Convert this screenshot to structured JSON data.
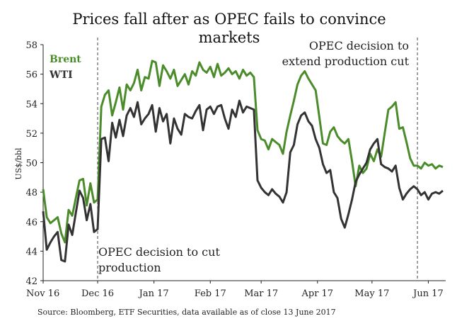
{
  "chart_data": {
    "type": "line",
    "title_lines": [
      "Prices fall after as OPEC fails to convince",
      "markets"
    ],
    "ylabel": "US$/bbl",
    "xlabel": "",
    "ylim": [
      42,
      58
    ],
    "yticks": [
      42,
      44,
      46,
      48,
      50,
      52,
      54,
      56,
      58
    ],
    "xlim": [
      0,
      220
    ],
    "xticks": [
      {
        "label": "Nov 16",
        "x": 0
      },
      {
        "label": "Dec 16",
        "x": 30
      },
      {
        "label": "Jan 17",
        "x": 61
      },
      {
        "label": "Feb 17",
        "x": 92
      },
      {
        "label": "Mar 17",
        "x": 120
      },
      {
        "label": "Apr 17",
        "x": 151
      },
      {
        "label": "May 17",
        "x": 181
      },
      {
        "label": "Jun 17",
        "x": 212
      }
    ],
    "series": [
      {
        "name": "Brent",
        "color": "#4a8c2a",
        "x": [
          0,
          2,
          4,
          6,
          8,
          10,
          12,
          14,
          16,
          18,
          20,
          22,
          24,
          26,
          28,
          30,
          32,
          34,
          36,
          38,
          40,
          42,
          44,
          46,
          48,
          50,
          52,
          54,
          56,
          58,
          60,
          62,
          64,
          66,
          68,
          70,
          72,
          74,
          76,
          78,
          80,
          82,
          84,
          86,
          88,
          90,
          92,
          94,
          96,
          98,
          100,
          102,
          104,
          106,
          108,
          110,
          112,
          114,
          116,
          118,
          120,
          122,
          124,
          126,
          128,
          130,
          132,
          134,
          136,
          138,
          140,
          142,
          144,
          146,
          148,
          150,
          152,
          154,
          156,
          158,
          160,
          162,
          164,
          166,
          168,
          170,
          172,
          174,
          176,
          178,
          180,
          182,
          184,
          186,
          188,
          190,
          192,
          194,
          196,
          198,
          200,
          202,
          204,
          206,
          208,
          210,
          212,
          214,
          216,
          218,
          220
        ],
        "values": [
          48.2,
          46.3,
          45.9,
          46.1,
          46.3,
          45.2,
          44.6,
          46.8,
          46.4,
          47.6,
          48.8,
          48.9,
          47.1,
          48.6,
          47.3,
          47.5,
          53.8,
          54.6,
          54.9,
          53.2,
          54.1,
          55.1,
          53.6,
          55.3,
          54.9,
          55.4,
          56.3,
          54.9,
          55.8,
          55.7,
          56.9,
          56.8,
          55.2,
          56.6,
          56.2,
          55.7,
          56.3,
          55.2,
          55.6,
          56.0,
          55.3,
          56.2,
          55.9,
          56.8,
          56.3,
          56.1,
          56.5,
          55.8,
          56.7,
          55.9,
          56.1,
          56.4,
          56.0,
          56.2,
          55.7,
          56.3,
          55.9,
          56.1,
          55.8,
          52.2,
          51.6,
          51.5,
          50.9,
          51.6,
          51.4,
          51.2,
          50.6,
          52.1,
          53.2,
          54.2,
          55.3,
          55.9,
          56.2,
          55.7,
          55.3,
          54.9,
          53.1,
          51.3,
          51.2,
          52.1,
          52.4,
          51.8,
          51.5,
          51.3,
          51.6,
          50.1,
          48.4,
          49.8,
          49.3,
          49.6,
          50.6,
          50.1,
          50.9,
          50.4,
          52.0,
          53.6,
          53.8,
          54.1,
          52.3,
          52.4,
          51.4,
          50.3,
          49.8,
          49.8,
          49.6,
          50.0,
          49.8,
          49.9,
          49.6,
          49.8,
          49.7
        ]
      },
      {
        "name": "WTI",
        "color": "#333333",
        "x": [
          0,
          2,
          4,
          6,
          8,
          10,
          12,
          14,
          16,
          18,
          20,
          22,
          24,
          26,
          28,
          30,
          32,
          34,
          36,
          38,
          40,
          42,
          44,
          46,
          48,
          50,
          52,
          54,
          56,
          58,
          60,
          62,
          64,
          66,
          68,
          70,
          72,
          74,
          76,
          78,
          80,
          82,
          84,
          86,
          88,
          90,
          92,
          94,
          96,
          98,
          100,
          102,
          104,
          106,
          108,
          110,
          112,
          114,
          116,
          118,
          120,
          122,
          124,
          126,
          128,
          130,
          132,
          134,
          136,
          138,
          140,
          142,
          144,
          146,
          148,
          150,
          152,
          154,
          156,
          158,
          160,
          162,
          164,
          166,
          168,
          170,
          172,
          174,
          176,
          178,
          180,
          182,
          184,
          186,
          188,
          190,
          192,
          194,
          196,
          198,
          200,
          202,
          204,
          206,
          208,
          210,
          212,
          214,
          216,
          218,
          220
        ],
        "values": [
          46.7,
          44.1,
          44.6,
          45.0,
          45.3,
          43.4,
          43.3,
          45.8,
          45.1,
          46.6,
          48.1,
          47.6,
          46.1,
          47.2,
          45.3,
          45.5,
          51.6,
          51.7,
          50.1,
          52.7,
          51.7,
          52.9,
          51.8,
          53.2,
          53.7,
          53.1,
          54.1,
          52.6,
          53.0,
          53.3,
          53.9,
          52.1,
          53.7,
          52.8,
          53.3,
          51.3,
          53.0,
          52.3,
          51.9,
          53.3,
          53.1,
          53.0,
          53.5,
          53.9,
          52.2,
          53.6,
          53.8,
          53.3,
          53.8,
          53.9,
          53.0,
          52.3,
          53.6,
          53.1,
          54.2,
          53.4,
          53.8,
          53.7,
          53.6,
          48.8,
          48.3,
          48.0,
          47.8,
          48.2,
          47.9,
          47.7,
          47.3,
          48.0,
          50.7,
          51.2,
          52.6,
          53.2,
          53.4,
          52.8,
          52.5,
          51.6,
          51.0,
          49.9,
          49.3,
          49.5,
          48.0,
          47.6,
          46.2,
          45.6,
          46.5,
          47.5,
          48.7,
          49.2,
          49.6,
          50.0,
          50.9,
          51.3,
          51.6,
          49.9,
          49.7,
          49.6,
          49.4,
          49.8,
          48.3,
          47.5,
          47.9,
          48.2,
          48.4,
          48.2,
          47.8,
          48.0,
          47.5,
          47.9,
          48.0,
          47.9,
          48.1
        ]
      }
    ],
    "vlines": [
      {
        "x": 30,
        "label": "OPEC decision to cut production"
      },
      {
        "x": 206,
        "label": "OPEC decision to extend production cut"
      }
    ],
    "annotations": [
      {
        "lines": [
          "OPEC decision to cut",
          "production"
        ]
      },
      {
        "lines": [
          "OPEC decision to",
          "extend production cut"
        ]
      }
    ],
    "legend": [
      {
        "name": "Brent",
        "color": "#4a8c2a"
      },
      {
        "name": "WTI",
        "color": "#333333"
      }
    ],
    "legend_placement": "top-left",
    "grid": false,
    "source": "Source: Bloomberg, ETF Securities, data available as of close 13 June 2017"
  }
}
